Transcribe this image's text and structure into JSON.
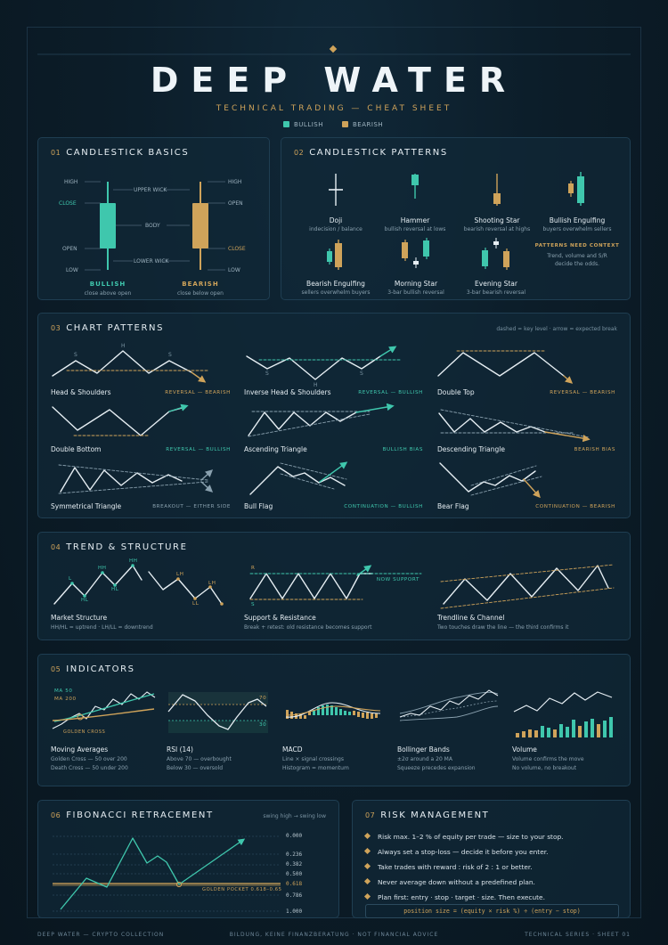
{
  "header": {
    "title": "DEEP WATER",
    "subtitle": "TECHNICAL TRADING — CHEAT SHEET",
    "legend": [
      {
        "label": "BULLISH",
        "color": "#3fc7ad"
      },
      {
        "label": "BEARISH",
        "color": "#cfa35a"
      }
    ]
  },
  "colors": {
    "bullish": "#3fc7ad",
    "bearish": "#cfa35a",
    "line": "#e6eef3"
  },
  "s01": {
    "num": "01",
    "title": "CANDLESTICK BASICS",
    "labels": {
      "high": "HIGH",
      "close": "CLOSE",
      "open": "OPEN",
      "low": "LOW",
      "upper_wick": "UPPER WICK",
      "body": "BODY",
      "lower_wick": "LOWER WICK"
    },
    "bullish": {
      "name": "BULLISH",
      "desc": "close above open"
    },
    "bearish": {
      "name": "BEARISH",
      "desc": "close below open"
    }
  },
  "s02": {
    "num": "02",
    "title": "CANDLESTICK PATTERNS",
    "patterns": [
      {
        "name": "Doji",
        "desc": "indecision / balance"
      },
      {
        "name": "Hammer",
        "desc": "bullish reversal at lows"
      },
      {
        "name": "Shooting Star",
        "desc": "bearish reversal at highs"
      },
      {
        "name": "Bullish Engulfing",
        "desc": "buyers overwhelm sellers"
      },
      {
        "name": "Bearish Engulfing",
        "desc": "sellers overwhelm buyers"
      },
      {
        "name": "Morning Star",
        "desc": "3-bar bullish reversal"
      },
      {
        "name": "Evening Star",
        "desc": "3-bar bearish reversal"
      }
    ],
    "context": {
      "title": "PATTERNS NEED CONTEXT",
      "line1": "Trend, volume and S/R",
      "line2": "decide the odds."
    }
  },
  "s03": {
    "num": "03",
    "title": "CHART PATTERNS",
    "note": "dashed = key level · arrow = expected break",
    "patterns": [
      {
        "name": "Head & Shoulders",
        "tag": "REVERSAL — BEARISH"
      },
      {
        "name": "Inverse Head & Shoulders",
        "tag": "REVERSAL — BULLISH"
      },
      {
        "name": "Double Top",
        "tag": "REVERSAL — BEARISH"
      },
      {
        "name": "Double Bottom",
        "tag": "REVERSAL — BULLISH"
      },
      {
        "name": "Ascending Triangle",
        "tag": "BULLISH BIAS"
      },
      {
        "name": "Descending Triangle",
        "tag": "BEARISH BIAS"
      },
      {
        "name": "Symmetrical Triangle",
        "tag": "BREAKOUT — EITHER SIDE"
      },
      {
        "name": "Bull Flag",
        "tag": "CONTINUATION — BULLISH"
      },
      {
        "name": "Bear Flag",
        "tag": "CONTINUATION — BEARISH"
      }
    ],
    "hs_labels": {
      "s": "S",
      "h": "H"
    }
  },
  "s04": {
    "num": "04",
    "title": "TREND & STRUCTURE",
    "items": [
      {
        "name": "Market Structure",
        "desc": "HH/HL = uptrend · LH/LL = downtrend"
      },
      {
        "name": "Support & Resistance",
        "desc": "Break + retest: old resistance becomes support"
      },
      {
        "name": "Trendline & Channel",
        "desc": "Two touches draw the line — the third confirms it"
      }
    ],
    "ms_labels": {
      "hh": "HH",
      "hl": "HL",
      "lh": "LH",
      "ll": "LL",
      "l": "L"
    },
    "sr_labels": {
      "r": "R",
      "s": "S",
      "now_support": "NOW SUPPORT"
    }
  },
  "s05": {
    "num": "05",
    "title": "INDICATORS",
    "items": [
      {
        "name": "Moving Averages",
        "desc1": "Golden Cross — 50 over 200",
        "desc2": "Death Cross — 50 under 200"
      },
      {
        "name": "RSI (14)",
        "desc1": "Above 70 — overbought",
        "desc2": "Below 30 — oversold"
      },
      {
        "name": "MACD",
        "desc1": "Line × signal crossings",
        "desc2": "Histogram = momentum"
      },
      {
        "name": "Bollinger Bands",
        "desc1": "±2σ around a 20 MA",
        "desc2": "Squeeze precedes expansion"
      },
      {
        "name": "Volume",
        "desc1": "Volume confirms the move",
        "desc2": "No volume, no breakout"
      }
    ],
    "ma_labels": {
      "ma50": "MA 50",
      "ma200": "MA 200",
      "golden_cross": "GOLDEN CROSS"
    },
    "rsi_levels": {
      "upper": "70",
      "lower": "30"
    }
  },
  "s06": {
    "num": "06",
    "title": "FIBONACCI RETRACEMENT",
    "note": "swing high → swing low",
    "levels": [
      "0.000",
      "0.236",
      "0.382",
      "0.500",
      "0.618",
      "0.786",
      "1.000"
    ],
    "golden_pocket": "GOLDEN POCKET 0.618–0.65"
  },
  "s07": {
    "num": "07",
    "title": "RISK MANAGEMENT",
    "rules": [
      "Risk max. 1–2 % of equity per trade — size to your stop.",
      "Always set a stop-loss — decide it before you enter.",
      "Take trades with reward : risk of 2 : 1 or better.",
      "Never average down without a predefined plan.",
      "Plan first: entry · stop · target · size. Then execute."
    ],
    "formula": "position size = (equity × risk %) ÷ (entry − stop)"
  },
  "footer": {
    "left": "DEEP WATER — CRYPTO COLLECTION",
    "center": "BILDUNG, KEINE FINANZBERATUNG · NOT FINANCIAL ADVICE",
    "right": "TECHNICAL SERIES · SHEET 01"
  }
}
